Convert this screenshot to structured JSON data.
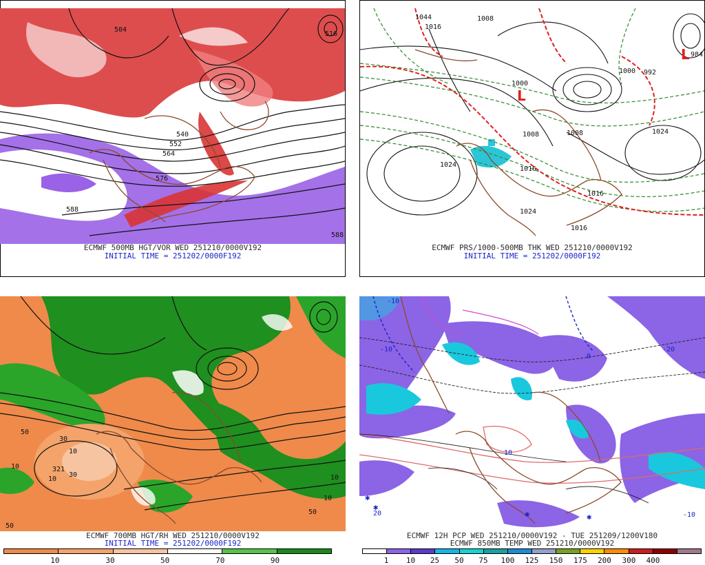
{
  "panels": {
    "tl": {
      "title": "ECMWF 500MB HGT/VOR WED 251210/0000V192",
      "init": "INITIAL TIME = 251202/0000F192",
      "contour_labels": [
        "504",
        "540",
        "552",
        "564",
        "576",
        "588",
        "588",
        "516"
      ]
    },
    "tr": {
      "title": "ECMWF PRS/1000-500MB THK WED 251210/0000V192",
      "init": "INITIAL TIME = 251202/0000F192",
      "contour_labels": [
        "1044",
        "1016",
        "1008",
        "1000",
        "1024",
        "1016",
        "1008",
        "1000",
        "992",
        "984",
        "1024",
        "1016",
        "1008",
        "1016",
        "1024"
      ]
    },
    "bl": {
      "title": "ECMWF 700MB HGT/RH WED 251210/0000V192",
      "init": "INITIAL TIME = 251202/0000F192",
      "contour_labels": [
        "10",
        "50",
        "30",
        "30",
        "10",
        "321",
        "10",
        "50",
        "10",
        "10",
        "50"
      ],
      "legend": {
        "ticks": [
          "10",
          "30",
          "50",
          "70",
          "90"
        ],
        "colors": [
          "#ef8a4b",
          "#f4a36a",
          "#f7c4a1",
          "#ffffff",
          "#58c24a",
          "#1b8a1b"
        ]
      }
    },
    "br": {
      "title": "ECMWF 12H PCP WED 251210/0000V192 - TUE 251209/1200V180",
      "subtitle": "ECMWF 850MB TEMP WED 251210/0000V192",
      "contour_labels": [
        "-10",
        "-10",
        "-20",
        "0",
        "10",
        "20",
        "-10"
      ],
      "legend": {
        "ticks": [
          "1",
          "10",
          "25",
          "50",
          "75",
          "100",
          "125",
          "150",
          "175",
          "200",
          "300",
          "400"
        ],
        "colors": [
          "#ffffff",
          "#8c64e6",
          "#5a3cc8",
          "#19b4e6",
          "#19d2d2",
          "#1ea0a0",
          "#1e8cd2",
          "#96a0c8",
          "#78a028",
          "#ffd200",
          "#ff8c00",
          "#c81e1e",
          "#8c0000",
          "#a0788c"
        ]
      }
    }
  }
}
